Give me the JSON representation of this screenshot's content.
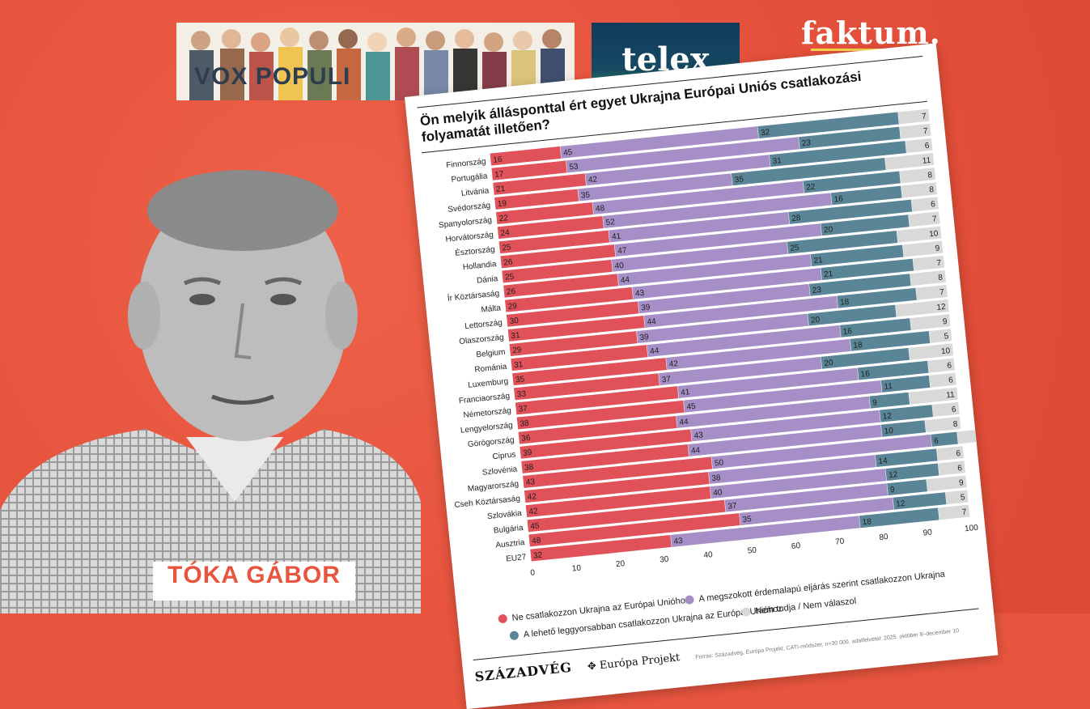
{
  "logos": {
    "vox": "VOX POPULI",
    "telex": "telex",
    "faktum": "faktum."
  },
  "person": {
    "name": "TÓKA GÁBOR"
  },
  "chart_data": {
    "type": "bar",
    "orientation": "horizontal-stacked",
    "title": "Ön melyik állásponttal ért egyet Ukrajna Európai Uniós csatlakozási folyamatát illetően?",
    "categories": [
      "Finnország",
      "Portugália",
      "Litvánia",
      "Svédország",
      "Spanyolország",
      "Horvátország",
      "Észtország",
      "Hollandia",
      "Dánia",
      "Ír Köztársaság",
      "Málta",
      "Lettország",
      "Olaszország",
      "Belgium",
      "Románia",
      "Luxemburg",
      "Franciaország",
      "Németország",
      "Lengyelország",
      "Görögország",
      "Ciprus",
      "Szlovénia",
      "Magyarország",
      "Cseh Köztársaság",
      "Szlovákia",
      "Bulgária",
      "Ausztria",
      "EU27"
    ],
    "series": [
      {
        "name": "Ne csatlakozzon Ukrajna az Európai Unióhoz",
        "color": "#e0515a",
        "values": [
          16,
          17,
          21,
          19,
          22,
          24,
          25,
          26,
          25,
          26,
          29,
          30,
          31,
          29,
          31,
          35,
          33,
          37,
          38,
          36,
          39,
          38,
          43,
          42,
          42,
          45,
          48,
          32
        ]
      },
      {
        "name": "A megszokott érdemalapú eljárás szerint csatlakozzon Ukrajna",
        "color": "#a58fc6",
        "values": [
          45,
          53,
          42,
          35,
          48,
          52,
          41,
          47,
          40,
          44,
          43,
          39,
          44,
          39,
          44,
          42,
          37,
          41,
          45,
          44,
          43,
          44,
          50,
          38,
          40,
          37,
          35,
          43
        ]
      },
      {
        "name": "A lehető leggyorsabban csatlakozzon Ukrajna az Európai Unióhoz",
        "color": "#5a8596",
        "values": [
          32,
          23,
          31,
          35,
          22,
          16,
          28,
          20,
          25,
          21,
          21,
          23,
          18,
          20,
          16,
          18,
          20,
          16,
          11,
          9,
          12,
          10,
          6,
          14,
          12,
          9,
          12,
          18
        ]
      },
      {
        "name": "Nem tudja / Nem válaszol",
        "color": "#d9d9d9",
        "values": [
          7,
          7,
          6,
          11,
          8,
          8,
          6,
          7,
          10,
          9,
          7,
          8,
          7,
          12,
          9,
          5,
          10,
          6,
          6,
          11,
          6,
          8,
          6,
          6,
          6,
          9,
          5,
          7
        ]
      }
    ],
    "xlim": [
      0,
      100
    ],
    "xticks": [
      "0",
      "10",
      "20",
      "30",
      "40",
      "50",
      "60",
      "70",
      "80",
      "90",
      "100"
    ],
    "legend_position": "bottom"
  },
  "footer": {
    "brand": "SZÁZADVÉG",
    "project": "Európa Projekt",
    "source": "Forrás: Századvég, Európa Projekt, CATI-módszer, n=30 000, adatfelvétel: 2025. október 8–december 10"
  }
}
